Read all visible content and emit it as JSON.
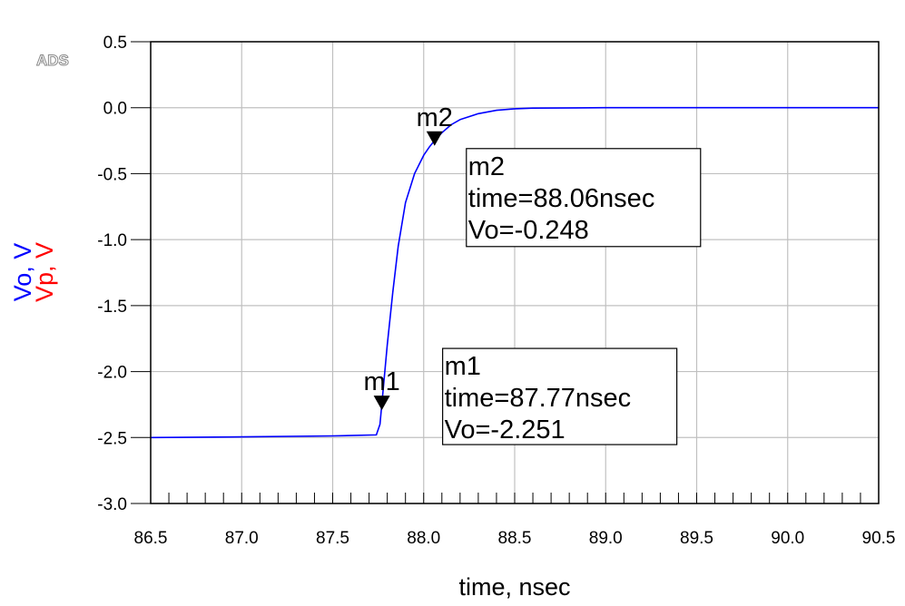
{
  "logo": "ADS",
  "chart_data": {
    "type": "line",
    "xlabel": "time, nsec",
    "ylabel_parts": [
      {
        "text": "Vo, V",
        "color": "#0000ff"
      },
      {
        "text": "Vp, V",
        "color": "#ff0000"
      }
    ],
    "xlim": [
      86.5,
      90.5
    ],
    "ylim": [
      -3.0,
      0.5
    ],
    "x_ticks": [
      "86.5",
      "87.0",
      "87.5",
      "88.0",
      "88.5",
      "89.0",
      "89.5",
      "90.0",
      "90.5"
    ],
    "y_ticks": [
      "0.5",
      "0.0",
      "-0.5",
      "-1.0",
      "-1.5",
      "-2.0",
      "-2.5",
      "-3.0"
    ],
    "grid": true,
    "series": [
      {
        "name": "Vo",
        "color": "#0000ff",
        "x": [
          86.5,
          87.0,
          87.5,
          87.74,
          87.76,
          87.77,
          87.8,
          87.83,
          87.86,
          87.9,
          87.95,
          88.0,
          88.03,
          88.06,
          88.1,
          88.15,
          88.2,
          88.3,
          88.4,
          88.5,
          88.6,
          89.0,
          89.5,
          90.0,
          90.5
        ],
        "y": [
          -2.5,
          -2.495,
          -2.488,
          -2.48,
          -2.4,
          -2.251,
          -1.8,
          -1.4,
          -1.05,
          -0.72,
          -0.5,
          -0.36,
          -0.3,
          -0.248,
          -0.19,
          -0.13,
          -0.09,
          -0.045,
          -0.02,
          -0.008,
          -0.003,
          0.0,
          0.0,
          0.0,
          0.0
        ]
      }
    ],
    "markers": [
      {
        "name": "m1",
        "x": 87.77,
        "y": -2.251,
        "lines": [
          "m1",
          "time=87.77nsec",
          "Vo=-2.251"
        ]
      },
      {
        "name": "m2",
        "x": 88.06,
        "y": -0.248,
        "lines": [
          "m2",
          "time=88.06nsec",
          "Vo=-0.248"
        ]
      }
    ]
  }
}
